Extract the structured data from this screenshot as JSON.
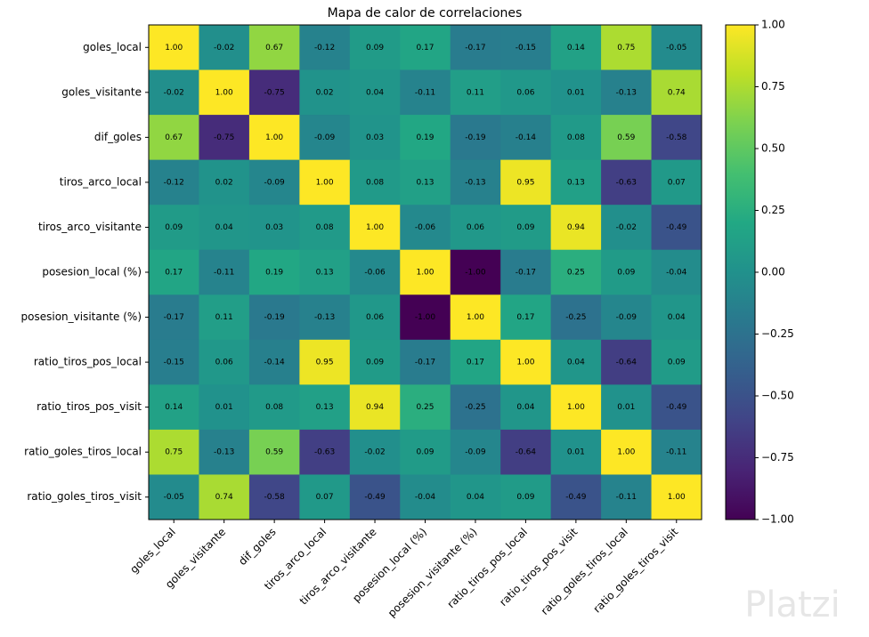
{
  "chart_data": {
    "type": "heatmap",
    "title": "Mapa de calor de correlaciones",
    "categories": [
      "goles_local",
      "goles_visitante",
      "dif_goles",
      "tiros_arco_local",
      "tiros_arco_visitante",
      "posesion_local (%)",
      "posesion_visitante (%)",
      "ratio_tiros_pos_local",
      "ratio_tiros_pos_visit",
      "ratio_goles_tiros_local",
      "ratio_goles_tiros_visit"
    ],
    "values": [
      [
        1.0,
        -0.02,
        0.67,
        -0.12,
        0.09,
        0.17,
        -0.17,
        -0.15,
        0.14,
        0.75,
        -0.05
      ],
      [
        -0.02,
        1.0,
        -0.75,
        0.02,
        0.04,
        -0.11,
        0.11,
        0.06,
        0.01,
        -0.13,
        0.74
      ],
      [
        0.67,
        -0.75,
        1.0,
        -0.09,
        0.03,
        0.19,
        -0.19,
        -0.14,
        0.08,
        0.59,
        -0.58
      ],
      [
        -0.12,
        0.02,
        -0.09,
        1.0,
        0.08,
        0.13,
        -0.13,
        0.95,
        0.13,
        -0.63,
        0.07
      ],
      [
        0.09,
        0.04,
        0.03,
        0.08,
        1.0,
        -0.06,
        0.06,
        0.09,
        0.94,
        -0.02,
        -0.49
      ],
      [
        0.17,
        -0.11,
        0.19,
        0.13,
        -0.06,
        1.0,
        -1.0,
        -0.17,
        0.25,
        0.09,
        -0.04
      ],
      [
        -0.17,
        0.11,
        -0.19,
        -0.13,
        0.06,
        -1.0,
        1.0,
        0.17,
        -0.25,
        -0.09,
        0.04
      ],
      [
        -0.15,
        0.06,
        -0.14,
        0.95,
        0.09,
        -0.17,
        0.17,
        1.0,
        0.04,
        -0.64,
        0.09
      ],
      [
        0.14,
        0.01,
        0.08,
        0.13,
        0.94,
        0.25,
        -0.25,
        0.04,
        1.0,
        0.01,
        -0.49
      ],
      [
        0.75,
        -0.13,
        0.59,
        -0.63,
        -0.02,
        0.09,
        -0.09,
        -0.64,
        0.01,
        1.0,
        -0.11
      ],
      [
        -0.05,
        0.74,
        -0.58,
        0.07,
        -0.49,
        -0.04,
        0.04,
        0.09,
        -0.49,
        -0.11,
        1.0
      ]
    ],
    "value_labels": [
      [
        "1.00",
        "-0.02",
        "0.67",
        "-0.12",
        "0.09",
        "0.17",
        "-0.17",
        "-0.15",
        "0.14",
        "0.75",
        "-0.05"
      ],
      [
        "-0.02",
        "1.00",
        "-0.75",
        "0.02",
        "0.04",
        "-0.11",
        "0.11",
        "0.06",
        "0.01",
        "-0.13",
        "0.74"
      ],
      [
        "0.67",
        "-0.75",
        "1.00",
        "-0.09",
        "0.03",
        "0.19",
        "-0.19",
        "-0.14",
        "0.08",
        "0.59",
        "-0.58"
      ],
      [
        "-0.12",
        "0.02",
        "-0.09",
        "1.00",
        "0.08",
        "0.13",
        "-0.13",
        "0.95",
        "0.13",
        "-0.63",
        "0.07"
      ],
      [
        "0.09",
        "0.04",
        "0.03",
        "0.08",
        "1.00",
        "-0.06",
        "0.06",
        "0.09",
        "0.94",
        "-0.02",
        "-0.49"
      ],
      [
        "0.17",
        "-0.11",
        "0.19",
        "0.13",
        "-0.06",
        "1.00",
        "-1.00",
        "-0.17",
        "0.25",
        "0.09",
        "-0.04"
      ],
      [
        "-0.17",
        "0.11",
        "-0.19",
        "-0.13",
        "0.06",
        "-1.00",
        "1.00",
        "0.17",
        "-0.25",
        "-0.09",
        "0.04"
      ],
      [
        "-0.15",
        "0.06",
        "-0.14",
        "0.95",
        "0.09",
        "-0.17",
        "0.17",
        "1.00",
        "0.04",
        "-0.64",
        "0.09"
      ],
      [
        "0.14",
        "0.01",
        "0.08",
        "0.13",
        "0.94",
        "0.25",
        "-0.25",
        "0.04",
        "1.00",
        "0.01",
        "-0.49"
      ],
      [
        "0.75",
        "-0.13",
        "0.59",
        "-0.63",
        "-0.02",
        "0.09",
        "-0.09",
        "-0.64",
        "0.01",
        "1.00",
        "-0.11"
      ],
      [
        "-0.05",
        "0.74",
        "-0.58",
        "0.07",
        "-0.49",
        "-0.04",
        "0.04",
        "0.09",
        "-0.49",
        "-0.11",
        "1.00"
      ]
    ],
    "colormap": "viridis",
    "clim": [
      -1,
      1
    ],
    "cticks": [
      {
        "value": 1,
        "label": "1.00"
      },
      {
        "value": 0.75,
        "label": "0.75"
      },
      {
        "value": 0.5,
        "label": "0.50"
      },
      {
        "value": 0.25,
        "label": "0.25"
      },
      {
        "value": 0,
        "label": "0.00"
      },
      {
        "value": -0.25,
        "label": "−0.25"
      },
      {
        "value": -0.5,
        "label": "−0.50"
      },
      {
        "value": -0.75,
        "label": "−0.75"
      },
      {
        "value": -1,
        "label": "−1.00"
      }
    ],
    "watermark": "Platzi"
  }
}
